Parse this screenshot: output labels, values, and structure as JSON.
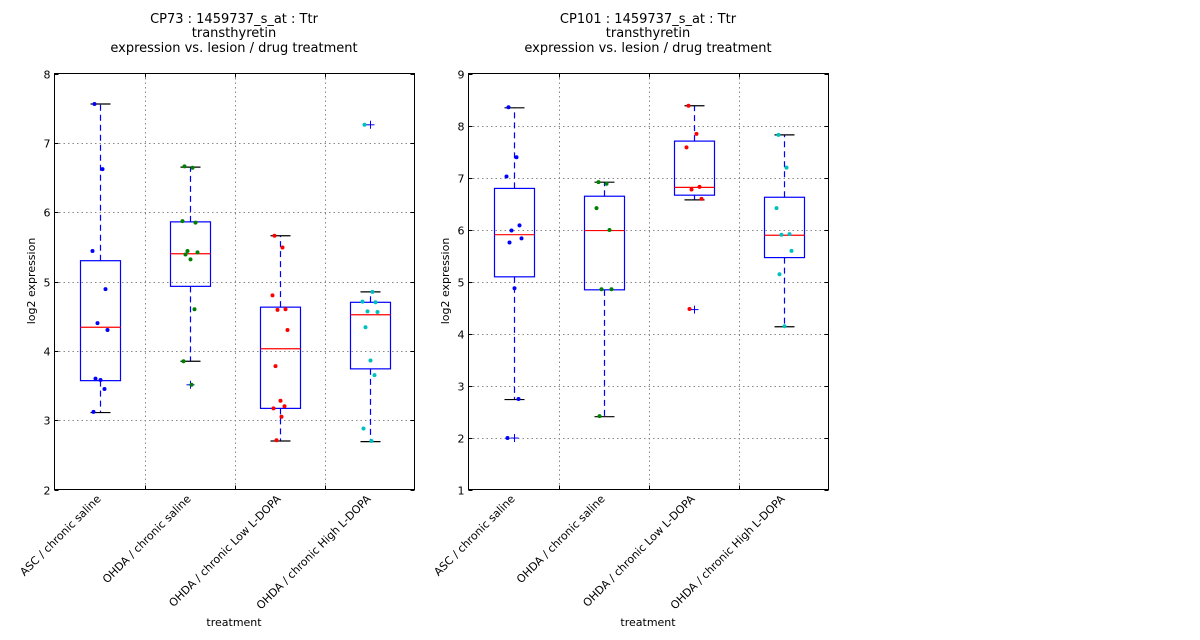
{
  "chart_data": [
    {
      "type": "box",
      "title_lines": [
        "CP73 : 1459737_s_at : Ttr",
        "transthyretin",
        "expression vs. lesion / drug treatment"
      ],
      "xlabel": "treatment",
      "ylabel": "log2 expression",
      "ylim": [
        2,
        8
      ],
      "yticks": [
        2,
        3,
        4,
        5,
        6,
        7,
        8
      ],
      "grid": true,
      "categories": [
        "ASC / chronic saline",
        "OHDA / chronic saline",
        "OHDA / chronic Low L-DOPA",
        "OHDA / chronic High L-DOPA"
      ],
      "point_colors": [
        "#0000ff",
        "#008000",
        "#ff0000",
        "#00bfbf"
      ],
      "boxes": [
        {
          "whisker_high": 7.56,
          "q3": 5.3,
          "median": 4.34,
          "q1": 3.57,
          "whisker_low": 3.11,
          "outliers": []
        },
        {
          "whisker_high": 6.65,
          "q3": 5.86,
          "median": 5.4,
          "q1": 4.93,
          "whisker_low": 3.85,
          "outliers": [
            3.51
          ]
        },
        {
          "whisker_high": 5.66,
          "q3": 4.63,
          "median": 4.03,
          "q1": 3.17,
          "whisker_low": 2.7,
          "outliers": []
        },
        {
          "whisker_high": 4.85,
          "q3": 4.7,
          "median": 4.52,
          "q1": 3.74,
          "whisker_low": 2.69,
          "outliers": [
            7.26
          ]
        }
      ],
      "points": [
        [
          7.56,
          6.62,
          5.44,
          4.89,
          4.4,
          4.3,
          3.6,
          3.58,
          3.45,
          3.12
        ],
        [
          6.66,
          6.64,
          5.87,
          5.85,
          5.44,
          5.42,
          5.39,
          5.32,
          4.6,
          3.85,
          3.51
        ],
        [
          5.66,
          5.49,
          4.8,
          4.6,
          4.59,
          4.3,
          3.78,
          3.28,
          3.2,
          3.17,
          3.05,
          2.71
        ],
        [
          7.26,
          4.85,
          4.71,
          4.7,
          4.57,
          4.56,
          4.34,
          3.86,
          3.65,
          2.88,
          2.7
        ]
      ]
    },
    {
      "type": "box",
      "title_lines": [
        "CP101 : 1459737_s_at : Ttr",
        "transthyretin",
        "expression vs. lesion / drug treatment"
      ],
      "xlabel": "treatment",
      "ylabel": "log2 expression",
      "ylim": [
        1,
        9
      ],
      "yticks": [
        1,
        2,
        3,
        4,
        5,
        6,
        7,
        8,
        9
      ],
      "grid": true,
      "categories": [
        "ASC / chronic saline",
        "OHDA / chronic saline",
        "OHDA / chronic Low L-DOPA",
        "OHDA / chronic High L-DOPA"
      ],
      "point_colors": [
        "#0000ff",
        "#008000",
        "#ff0000",
        "#00bfbf"
      ],
      "boxes": [
        {
          "whisker_high": 8.34,
          "q3": 6.79,
          "median": 5.9,
          "q1": 5.09,
          "whisker_low": 2.73,
          "outliers": [
            1.99
          ]
        },
        {
          "whisker_high": 6.91,
          "q3": 6.64,
          "median": 5.98,
          "q1": 4.84,
          "whisker_low": 2.4,
          "outliers": []
        },
        {
          "whisker_high": 8.38,
          "q3": 7.7,
          "median": 6.81,
          "q1": 6.66,
          "whisker_low": 6.57,
          "outliers": [
            4.46
          ]
        },
        {
          "whisker_high": 7.82,
          "q3": 6.62,
          "median": 5.89,
          "q1": 5.46,
          "whisker_low": 4.13,
          "outliers": []
        }
      ],
      "points": [
        [
          8.35,
          7.39,
          7.02,
          6.08,
          5.98,
          5.83,
          5.75,
          4.87,
          2.74,
          1.99
        ],
        [
          6.91,
          6.88,
          6.41,
          5.99,
          4.85,
          4.85,
          2.41
        ],
        [
          8.38,
          7.84,
          7.58,
          6.82,
          6.77,
          6.59,
          4.47
        ],
        [
          7.82,
          7.19,
          6.41,
          5.91,
          5.9,
          5.59,
          5.14,
          4.14
        ]
      ]
    }
  ]
}
